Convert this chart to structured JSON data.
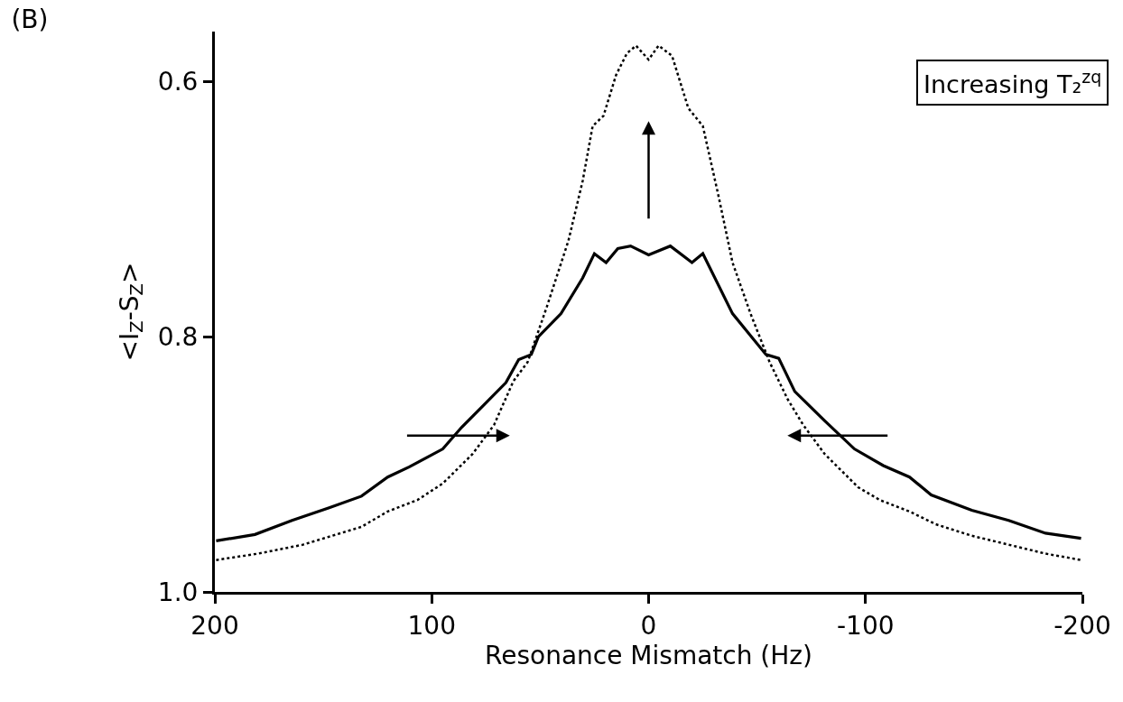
{
  "chart_data": {
    "type": "line",
    "title": "(B)",
    "xlabel": "Resonance Mismatch (Hz)",
    "ylabel": "<I$_{Z}$-S$_{Z}$>",
    "xlim": [
      200,
      -200
    ],
    "xticks": [
      200,
      100,
      0,
      -100,
      -200
    ],
    "ylim": [
      1.0,
      0.561
    ],
    "yticks": [
      {
        "value": 0.6,
        "label": "0.6"
      },
      {
        "value": 0.8,
        "label": "0.8"
      },
      {
        "value": 1.0,
        "label": "1.0"
      }
    ],
    "marker": "none",
    "annotations": [
      "Increasing T₂$^{zq}$"
    ],
    "series": [
      {
        "color": "#000000",
        "line_style": "solid",
        "x": [
          199.4,
          181.5,
          164.4,
          147.3,
          132.4,
          120.3,
          110.3,
          94.9,
          86.2,
          76.2,
          65.8,
          59.9,
          54.1,
          50.8,
          40.4,
          30.4,
          25,
          19.6,
          14.2,
          8.3,
          0,
          -10,
          -20,
          -25,
          -38.7,
          -54.1,
          -60,
          -67.4,
          -81.2,
          -94.9,
          -108.2,
          -120.3,
          -130.3,
          -149,
          -166,
          -183,
          -199.4
        ],
        "values": [
          0.96,
          0.955,
          0.944,
          0.934,
          0.925,
          0.91,
          0.902,
          0.888,
          0.871,
          0.854,
          0.836,
          0.818,
          0.814,
          0.8,
          0.782,
          0.754,
          0.735,
          0.742,
          0.731,
          0.729,
          0.736,
          0.729,
          0.742,
          0.735,
          0.782,
          0.814,
          0.817,
          0.843,
          0.866,
          0.888,
          0.901,
          0.91,
          0.924,
          0.936,
          0.944,
          0.954,
          0.958
        ]
      },
      {
        "color": "#000000",
        "line_style": "dotted",
        "x": [
          199.4,
          180,
          159.4,
          132.4,
          120.3,
          106.6,
          94.9,
          81.2,
          71.2,
          62.4,
          55.8,
          47,
          37,
          30.4,
          25.8,
          20.8,
          15,
          10,
          5.8,
          0,
          -4.6,
          -10.8,
          -18.3,
          -25,
          -32,
          -38.7,
          -47,
          -55.8,
          -64.1,
          -71.2,
          -81.2,
          -96.6,
          -106.6,
          -120.3,
          -132.4,
          -149,
          -166,
          -183,
          -199.4
        ],
        "values": [
          0.975,
          0.97,
          0.963,
          0.949,
          0.937,
          0.928,
          0.915,
          0.892,
          0.869,
          0.835,
          0.82,
          0.777,
          0.725,
          0.678,
          0.635,
          0.627,
          0.595,
          0.578,
          0.572,
          0.583,
          0.572,
          0.58,
          0.621,
          0.635,
          0.688,
          0.742,
          0.782,
          0.82,
          0.849,
          0.869,
          0.892,
          0.918,
          0.928,
          0.937,
          0.947,
          0.956,
          0.963,
          0.97,
          0.975
        ]
      }
    ]
  }
}
